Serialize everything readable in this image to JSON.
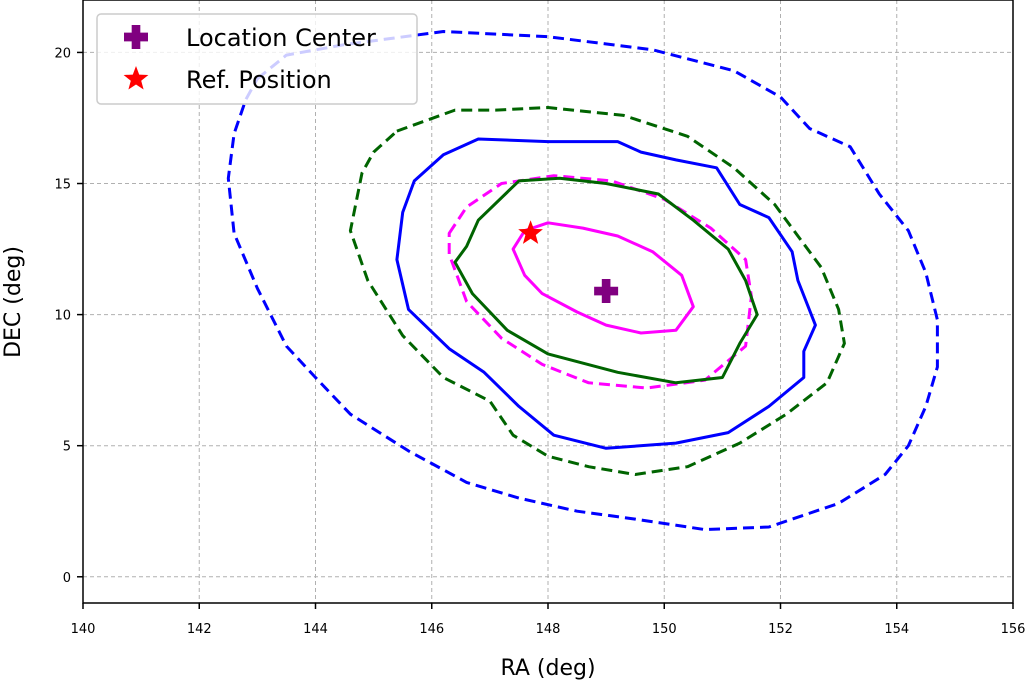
{
  "chart_data": {
    "type": "contour",
    "xlabel": "RA (deg)",
    "ylabel": "DEC (deg)",
    "xlim": [
      140,
      156
    ],
    "ylim": [
      -1,
      22
    ],
    "x_ticks": [
      140,
      142,
      144,
      146,
      148,
      150,
      152,
      154,
      156
    ],
    "y_ticks": [
      0,
      5,
      10,
      15,
      20
    ],
    "grid": true,
    "legend": {
      "placement": "top-left",
      "entries": [
        {
          "label": "Location Center",
          "marker": "plus",
          "color": "#800080"
        },
        {
          "label": "Ref. Position",
          "marker": "star",
          "color": "#ff0000"
        }
      ]
    },
    "markers": [
      {
        "label": "Location Center",
        "x": 149.0,
        "y": 10.9,
        "color": "#800080",
        "marker": "plus"
      },
      {
        "label": "Ref. Position",
        "x": 147.7,
        "y": 13.1,
        "color": "#ff0000",
        "marker": "star"
      }
    ],
    "contours": [
      {
        "color": "#ff00ff",
        "style": "solid",
        "points": [
          [
            147.4,
            12.5
          ],
          [
            147.6,
            11.5
          ],
          [
            147.9,
            10.8
          ],
          [
            148.5,
            10.1
          ],
          [
            149,
            9.6
          ],
          [
            149.6,
            9.3
          ],
          [
            150.2,
            9.4
          ],
          [
            150.5,
            10.3
          ],
          [
            150.3,
            11.5
          ],
          [
            149.8,
            12.4
          ],
          [
            149.2,
            13
          ],
          [
            148.6,
            13.3
          ],
          [
            148,
            13.5
          ],
          [
            147.6,
            13.2
          ]
        ]
      },
      {
        "color": "#ff00ff",
        "style": "dashed",
        "points": [
          [
            146.3,
            13.1
          ],
          [
            146.6,
            14.1
          ],
          [
            147.2,
            15
          ],
          [
            148.1,
            15.3
          ],
          [
            149.1,
            15.1
          ],
          [
            150,
            14.4
          ],
          [
            150.8,
            13.3
          ],
          [
            151.4,
            12.1
          ],
          [
            151.5,
            10.7
          ],
          [
            151.4,
            8.8
          ],
          [
            150.7,
            7.5
          ],
          [
            149.7,
            7.2
          ],
          [
            148.7,
            7.4
          ],
          [
            147.9,
            8.1
          ],
          [
            147.2,
            9.1
          ],
          [
            146.6,
            10.5
          ],
          [
            146.3,
            12.3
          ]
        ]
      },
      {
        "color": "#006400",
        "style": "solid",
        "points": [
          [
            146.6,
            12.6
          ],
          [
            146.8,
            13.6
          ],
          [
            147.5,
            15.1
          ],
          [
            148.2,
            15.2
          ],
          [
            149,
            15
          ],
          [
            149.9,
            14.6
          ],
          [
            150.5,
            13.6
          ],
          [
            151.1,
            12.5
          ],
          [
            151.4,
            11.3
          ],
          [
            151.6,
            10
          ],
          [
            151.3,
            8.9
          ],
          [
            151,
            7.6
          ],
          [
            150.2,
            7.4
          ],
          [
            149.2,
            7.8
          ],
          [
            148,
            8.5
          ],
          [
            147.3,
            9.4
          ],
          [
            146.7,
            10.8
          ],
          [
            146.4,
            12.0
          ]
        ]
      },
      {
        "color": "#0000ff",
        "style": "solid",
        "points": [
          [
            146.8,
            16.7
          ],
          [
            148,
            16.6
          ],
          [
            149.2,
            16.6
          ],
          [
            149.6,
            16.2
          ],
          [
            150.2,
            15.9
          ],
          [
            150.9,
            15.6
          ],
          [
            151.3,
            14.2
          ],
          [
            151.8,
            13.7
          ],
          [
            152.2,
            12.4
          ],
          [
            152.3,
            11.3
          ],
          [
            152.6,
            9.6
          ],
          [
            152.4,
            8.6
          ],
          [
            152.4,
            7.6
          ],
          [
            151.8,
            6.5
          ],
          [
            151.1,
            5.5
          ],
          [
            150.2,
            5.1
          ],
          [
            149,
            4.9
          ],
          [
            148.1,
            5.4
          ],
          [
            147.5,
            6.5
          ],
          [
            146.9,
            7.8
          ],
          [
            146.3,
            8.7
          ],
          [
            145.6,
            10.2
          ],
          [
            145.4,
            12.1
          ],
          [
            145.5,
            13.9
          ],
          [
            145.7,
            15.1
          ],
          [
            146.2,
            16.1
          ]
        ]
      },
      {
        "color": "#006400",
        "style": "dashed",
        "points": [
          [
            145.4,
            17
          ],
          [
            146.4,
            17.8
          ],
          [
            147.1,
            17.8
          ],
          [
            148,
            17.9
          ],
          [
            149.3,
            17.6
          ],
          [
            150.4,
            16.8
          ],
          [
            151.2,
            15.6
          ],
          [
            151.9,
            14.2
          ],
          [
            152.3,
            13
          ],
          [
            152.7,
            11.8
          ],
          [
            153,
            10.2
          ],
          [
            153.1,
            8.9
          ],
          [
            152.8,
            7.4
          ],
          [
            152.1,
            6.2
          ],
          [
            151.3,
            5.1
          ],
          [
            150.4,
            4.2
          ],
          [
            149.5,
            3.9
          ],
          [
            148.7,
            4.2
          ],
          [
            148,
            4.6
          ],
          [
            147.4,
            5.4
          ],
          [
            147,
            6.7
          ],
          [
            146.2,
            7.6
          ],
          [
            145.5,
            9.2
          ],
          [
            144.9,
            11.3
          ],
          [
            144.6,
            13.2
          ],
          [
            144.8,
            15.4
          ],
          [
            145.0,
            16.2
          ]
        ]
      },
      {
        "color": "#0000ff",
        "style": "dashed",
        "points": [
          [
            143.0,
            19.0
          ],
          [
            143.5,
            19.9
          ],
          [
            144.5,
            20.3
          ],
          [
            146.2,
            20.8
          ],
          [
            148.0,
            20.6
          ],
          [
            149.8,
            20.1
          ],
          [
            151.2,
            19.3
          ],
          [
            152.0,
            18.3
          ],
          [
            152.5,
            17.1
          ],
          [
            153.2,
            16.4
          ],
          [
            153.7,
            14.6
          ],
          [
            154.2,
            13.2
          ],
          [
            154.5,
            11.6
          ],
          [
            154.7,
            9.8
          ],
          [
            154.7,
            8.0
          ],
          [
            154.5,
            6.5
          ],
          [
            154.2,
            5.0
          ],
          [
            153.8,
            3.9
          ],
          [
            153.0,
            2.8
          ],
          [
            151.8,
            1.9
          ],
          [
            150.7,
            1.8
          ],
          [
            149.5,
            2.2
          ],
          [
            148.5,
            2.5
          ],
          [
            147.5,
            3.0
          ],
          [
            146.6,
            3.6
          ],
          [
            145.6,
            4.8
          ],
          [
            144.6,
            6.2
          ],
          [
            144.0,
            7.6
          ],
          [
            143.5,
            8.8
          ],
          [
            143.0,
            11.0
          ],
          [
            142.6,
            13.1
          ],
          [
            142.5,
            15.2
          ],
          [
            142.6,
            16.9
          ],
          [
            142.8,
            18.2
          ]
        ]
      }
    ]
  }
}
